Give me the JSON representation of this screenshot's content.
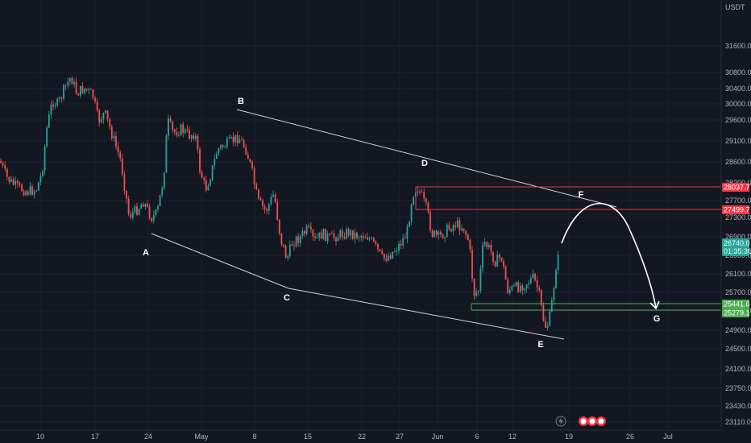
{
  "chart_data": {
    "type": "candlestick",
    "currency": "USDT",
    "y_ticks": [
      "31600.0",
      "30800.0",
      "30400.0",
      "30000.0",
      "29600.0",
      "29100.0",
      "28600.0",
      "28200.0",
      "27700.0",
      "27300.0",
      "26900.0",
      "26500.0",
      "26100.0",
      "25700.0",
      "25300.0",
      "24900.0",
      "24500.0",
      "24100.0",
      "23750.0",
      "23430.0",
      "23110.0"
    ],
    "x_ticks": [
      "10",
      "17",
      "24",
      "May",
      "8",
      "15",
      "22",
      "27",
      "Jun",
      "6",
      "12",
      "19",
      "26",
      "Jul"
    ],
    "ylim": [
      23000,
      32800
    ],
    "price_tags": {
      "current": {
        "value": "26740.0",
        "countdown": "01:35:36",
        "color": "#26a69a"
      },
      "red_upper": {
        "value": "28037.7",
        "color": "#f23645"
      },
      "red_lower": {
        "value": "27499.7",
        "color": "#f23645"
      },
      "green_upper": {
        "value": "25441.6",
        "color": "#4caf50"
      },
      "green_lower": {
        "value": "25279.1",
        "color": "#4caf50"
      }
    },
    "wave_points": [
      {
        "label": "A",
        "price": 26870
      },
      {
        "label": "B",
        "price": 29800
      },
      {
        "label": "C",
        "price": 25780
      },
      {
        "label": "D",
        "price": 28400
      },
      {
        "label": "E",
        "price": 24730
      },
      {
        "label": "F",
        "price": 27600
      },
      {
        "label": "G",
        "price": 25300
      }
    ],
    "colors": {
      "up": "#26a69a",
      "down": "#ef5350",
      "bg": "#131722",
      "grid": "#1e222d",
      "text": "#b2b5be"
    }
  },
  "toolbar": {
    "lightning_icon": "lightning-icon",
    "event_icons": [
      "flag-icon",
      "flag-icon",
      "flag-icon"
    ]
  }
}
